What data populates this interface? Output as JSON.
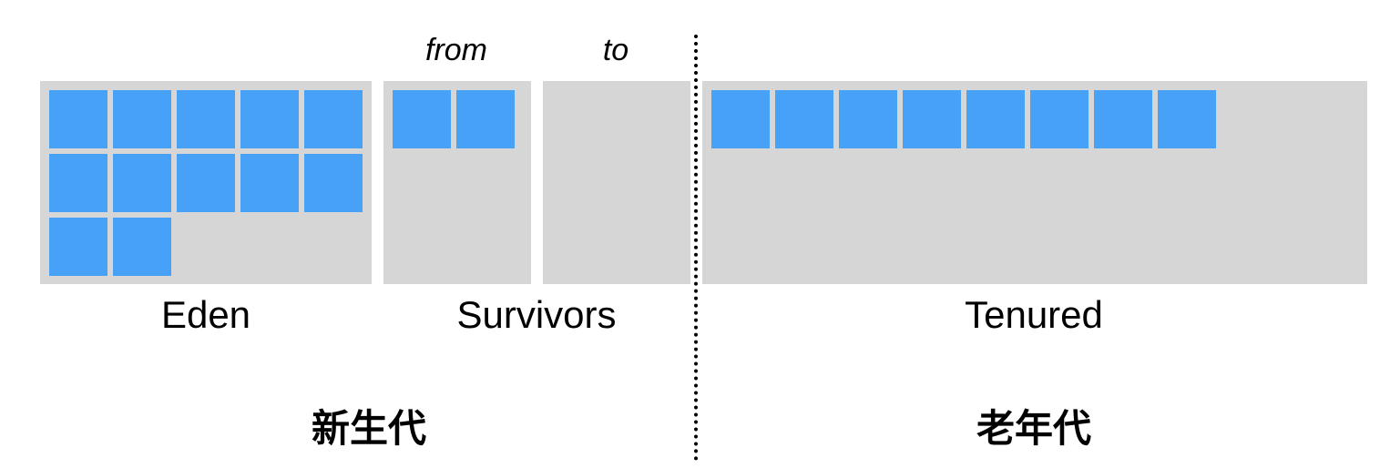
{
  "colors": {
    "object": "#47a1f7",
    "region": "#d6d6d6"
  },
  "regions": {
    "eden": {
      "label": "Eden",
      "objects": 12
    },
    "survivor_from": {
      "label": "from",
      "objects": 2
    },
    "survivor_to": {
      "label": "to",
      "objects": 0
    },
    "survivors_label": "Survivors",
    "tenured": {
      "label": "Tenured",
      "objects": 8
    }
  },
  "generations": {
    "young": "新生代",
    "old": "老年代"
  }
}
